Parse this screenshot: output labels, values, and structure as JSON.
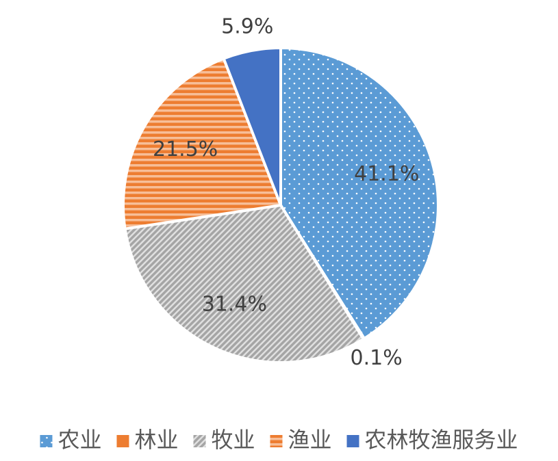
{
  "chart_data": {
    "type": "pie",
    "categories": [
      "农业",
      "林业",
      "牧业",
      "渔业",
      "农林牧渔服务业"
    ],
    "values": [
      41.1,
      0.1,
      31.4,
      21.5,
      5.9
    ],
    "value_labels": [
      "41.1%",
      "0.1%",
      "31.4%",
      "21.5%",
      "5.9%"
    ],
    "colors": [
      "#5b9bd5",
      "#ed7d31",
      "#a5a5a5",
      "#ed7d31",
      "#4472c4"
    ],
    "patterns": [
      "dots",
      "solid",
      "diagonal",
      "horizontal",
      "solid"
    ],
    "legend": "bottom"
  }
}
